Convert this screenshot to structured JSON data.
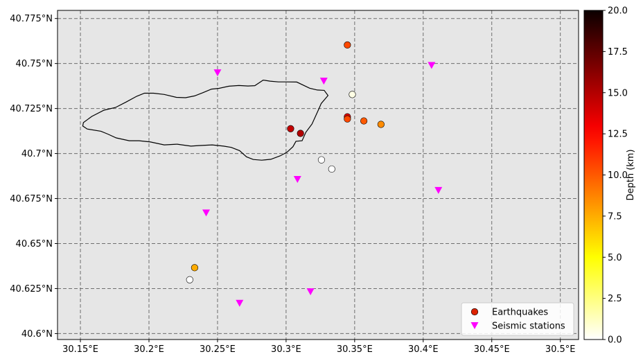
{
  "chart_data": {
    "type": "scatter",
    "title": "",
    "xlim": [
      30.1333,
      30.5133
    ],
    "ylim": [
      40.5967,
      40.7795
    ],
    "x_ticks": [
      {
        "value": 30.15,
        "label": "30.15°E"
      },
      {
        "value": 30.2,
        "label": "30.2°E"
      },
      {
        "value": 30.25,
        "label": "30.25°E"
      },
      {
        "value": 30.3,
        "label": "30.3°E"
      },
      {
        "value": 30.35,
        "label": "30.35°E"
      },
      {
        "value": 30.4,
        "label": "30.4°E"
      },
      {
        "value": 30.45,
        "label": "30.45°E"
      },
      {
        "value": 30.5,
        "label": "30.5°E"
      }
    ],
    "y_ticks": [
      {
        "value": 40.6,
        "label": "40.6°N"
      },
      {
        "value": 40.625,
        "label": "40.625°N"
      },
      {
        "value": 40.65,
        "label": "40.65°N"
      },
      {
        "value": 40.675,
        "label": "40.675°N"
      },
      {
        "value": 40.7,
        "label": "40.7°N"
      },
      {
        "value": 40.725,
        "label": "40.725°N"
      },
      {
        "value": 40.75,
        "label": "40.75°N"
      },
      {
        "value": 40.775,
        "label": "40.775°N"
      }
    ],
    "grid": true,
    "background_color": "#e6e6e6",
    "legend_position": "lower-right",
    "earthquakes": {
      "name": "Earthquakes",
      "x": [
        30.3447,
        30.3033,
        30.3105,
        30.3447,
        30.3447,
        30.3567,
        30.3692,
        30.3483,
        30.3258,
        30.3333,
        30.2333,
        30.2297
      ],
      "y": [
        40.7603,
        40.7138,
        40.7112,
        40.7204,
        40.7192,
        40.7181,
        40.7162,
        40.7328,
        40.6965,
        40.6914,
        40.6366,
        40.6299
      ],
      "depth": [
        10.5,
        14.5,
        15.0,
        13.5,
        10.5,
        10.0,
        8.5,
        0.5,
        0.0,
        0.0,
        7.5,
        0.0
      ]
    },
    "stations": {
      "name": "Seismic stations",
      "color": "#ff00ff",
      "x": [
        30.25,
        30.3275,
        30.4061,
        30.3083,
        30.4111,
        30.2417,
        30.2661,
        30.3178
      ],
      "y": [
        40.7448,
        40.7402,
        40.7489,
        40.6856,
        40.6795,
        40.667,
        40.6168,
        40.6232
      ]
    },
    "outline": {
      "x": [
        30.1522,
        30.1583,
        30.1672,
        30.1756,
        30.1833,
        30.1911,
        30.1967,
        30.2033,
        30.2111,
        30.22,
        30.2267,
        30.2333,
        30.2394,
        30.2456,
        30.2511,
        30.2583,
        30.2656,
        30.2722,
        30.2772,
        30.2833,
        30.2883,
        30.2944,
        30.3,
        30.3078,
        30.3172,
        30.3228,
        30.3278,
        30.3306,
        30.3256,
        30.3239,
        30.3189,
        30.3144,
        30.3117,
        30.3072,
        30.305,
        30.3006,
        30.2956,
        30.2889,
        30.2822,
        30.2761,
        30.2711,
        30.2661,
        30.26,
        30.2544,
        30.2461,
        30.2361,
        30.2306,
        30.2206,
        30.2111,
        30.2011,
        30.1928,
        30.1856,
        30.1761,
        30.17,
        30.165,
        30.155,
        30.1517
      ],
      "y": [
        40.7172,
        40.7206,
        40.7241,
        40.7256,
        40.7286,
        40.7318,
        40.7335,
        40.7335,
        40.7328,
        40.7312,
        40.731,
        40.732,
        40.7338,
        40.7358,
        40.7362,
        40.7374,
        40.7378,
        40.7375,
        40.7377,
        40.7408,
        40.7402,
        40.7398,
        40.7398,
        40.7397,
        40.7363,
        40.7353,
        40.7351,
        40.7322,
        40.7278,
        40.7248,
        40.7164,
        40.7118,
        40.7071,
        40.7068,
        40.7038,
        40.7007,
        40.6987,
        40.6968,
        40.6963,
        40.6967,
        40.6982,
        40.7016,
        40.7034,
        40.7041,
        40.7048,
        40.7044,
        40.7041,
        40.7052,
        40.7048,
        40.7064,
        40.7071,
        40.7071,
        40.7087,
        40.7108,
        40.7124,
        40.7136,
        40.7153
      ]
    },
    "colorbar": {
      "label": "Depth (km)",
      "range": [
        0,
        20
      ],
      "colormap": "hot_r",
      "ticks": [
        {
          "value": 0,
          "label": "0.0"
        },
        {
          "value": 2.5,
          "label": "2.5"
        },
        {
          "value": 5,
          "label": "5.0"
        },
        {
          "value": 7.5,
          "label": "7.5"
        },
        {
          "value": 10,
          "label": "10.0"
        },
        {
          "value": 12.5,
          "label": "12.5"
        },
        {
          "value": 15,
          "label": "15.0"
        },
        {
          "value": 17.5,
          "label": "17.5"
        },
        {
          "value": 20,
          "label": "20.0"
        }
      ]
    },
    "legend": [
      {
        "label": "Earthquakes",
        "marker": "circle",
        "color": "#dd2200"
      },
      {
        "label": "Seismic stations",
        "marker": "triangle-down",
        "color": "#ff00ff"
      }
    ]
  }
}
